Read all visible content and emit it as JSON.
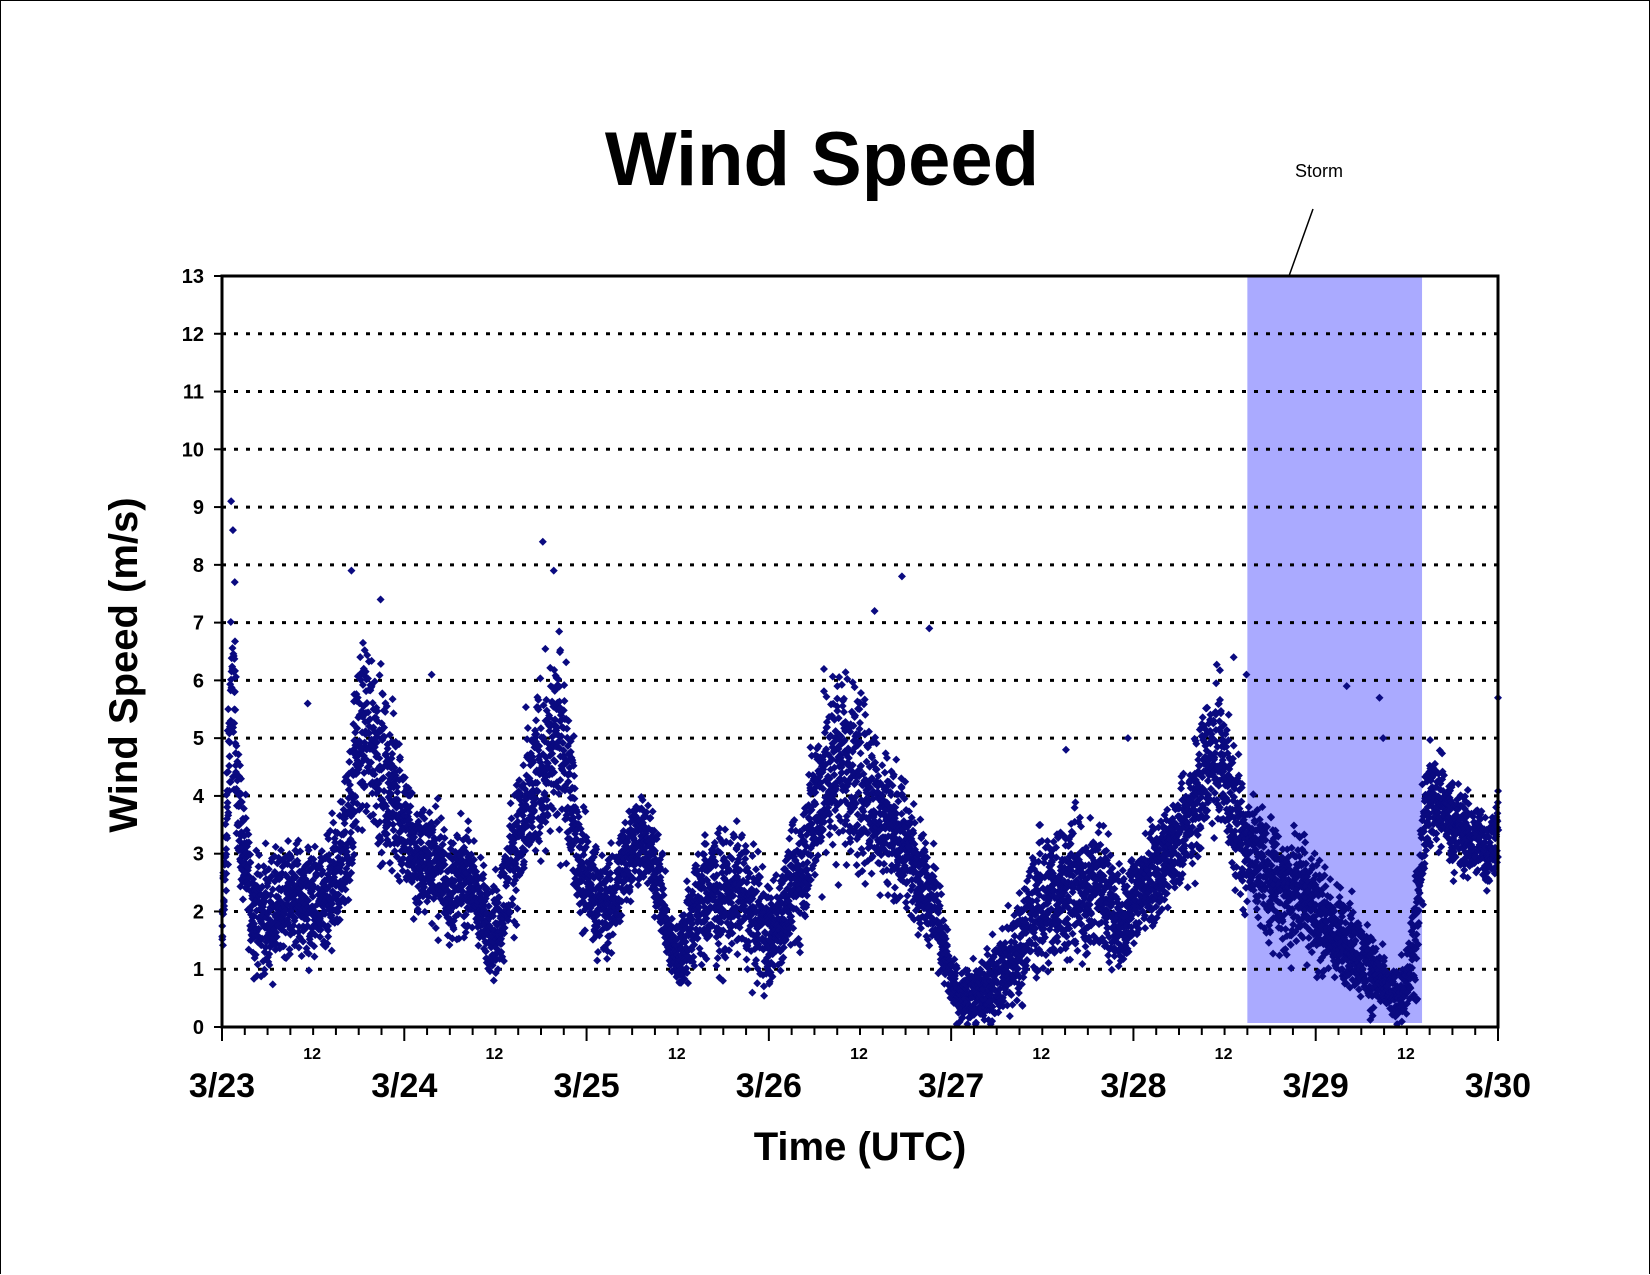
{
  "chart_data": {
    "type": "scatter",
    "title": "Wind Speed",
    "xlabel": "Time (UTC)",
    "ylabel": "Wind Speed (m/s)",
    "ylim": [
      0,
      13
    ],
    "yticks": [
      0,
      1,
      2,
      3,
      4,
      5,
      6,
      7,
      8,
      9,
      10,
      11,
      12,
      13
    ],
    "xlim": [
      "3/23 00:00",
      "3/30 00:00"
    ],
    "day_labels": [
      "3/23",
      "3/24",
      "3/25",
      "3/26",
      "3/27",
      "3/28",
      "3/29",
      "3/30"
    ],
    "hour_label": "12",
    "grid": "horizontal dotted",
    "marker": "diamond",
    "marker_color": "#0a0a80",
    "highlight": {
      "label": "Storm",
      "start": "3/28 15:00",
      "end": "3/29 14:00",
      "color": "#aaaaff"
    },
    "series": [
      {
        "x_days": [
          0.0,
          0.02,
          0.04,
          0.06,
          0.08,
          0.1,
          0.12,
          0.14,
          0.17,
          0.2,
          0.25,
          0.3,
          0.35,
          0.4,
          0.45,
          0.5,
          0.55,
          0.6,
          0.65,
          0.7,
          0.75,
          0.8,
          0.85,
          0.9,
          0.95,
          1.0,
          1.05,
          1.1,
          1.15,
          1.2,
          1.25,
          1.3,
          1.35,
          1.4,
          1.45,
          1.5,
          1.55,
          1.6,
          1.65,
          1.7,
          1.75,
          1.8,
          1.85,
          1.9,
          1.95,
          2.0,
          2.05,
          2.1,
          2.15,
          2.2,
          2.25,
          2.3,
          2.35,
          2.4,
          2.45,
          2.5,
          2.55,
          2.6,
          2.65,
          2.7,
          2.75,
          2.8,
          2.85,
          2.9,
          2.95,
          3.0,
          3.05,
          3.1,
          3.15,
          3.2,
          3.25,
          3.3,
          3.35,
          3.4,
          3.45,
          3.5,
          3.55,
          3.6,
          3.65,
          3.7,
          3.75,
          3.8,
          3.85,
          3.9,
          3.95,
          4.0,
          4.05,
          4.1,
          4.15,
          4.2,
          4.25,
          4.3,
          4.35,
          4.4,
          4.45,
          4.5,
          4.55,
          4.6,
          4.65,
          4.7,
          4.75,
          4.8,
          4.85,
          4.9,
          4.95,
          5.0,
          5.05,
          5.1,
          5.15,
          5.2,
          5.25,
          5.3,
          5.35,
          5.4,
          5.45,
          5.5,
          5.55,
          5.6,
          5.65,
          5.7,
          5.75,
          5.8,
          5.85,
          5.9,
          5.95,
          6.0,
          6.05,
          6.1,
          6.15,
          6.2,
          6.25,
          6.3,
          6.35,
          6.4,
          6.45,
          6.5,
          6.55,
          6.6,
          6.65,
          6.7,
          6.75,
          6.8,
          6.85,
          6.9,
          6.95,
          7.0
        ],
        "y": [
          1.5,
          3.0,
          5.0,
          6.0,
          4.5,
          3.5,
          3.0,
          2.5,
          2.0,
          2.0,
          1.9,
          2.0,
          2.2,
          2.3,
          2.2,
          2.1,
          2.0,
          2.3,
          2.8,
          3.5,
          5.0,
          5.2,
          4.8,
          4.2,
          4.0,
          3.5,
          3.0,
          2.8,
          3.0,
          2.7,
          2.4,
          2.5,
          2.6,
          2.2,
          1.8,
          1.6,
          2.2,
          3.0,
          3.5,
          4.0,
          4.5,
          4.8,
          5.0,
          4.5,
          3.0,
          2.5,
          2.3,
          2.0,
          2.2,
          2.8,
          3.2,
          3.3,
          3.0,
          2.5,
          1.5,
          1.2,
          1.6,
          2.0,
          2.2,
          2.3,
          2.2,
          2.4,
          2.3,
          2.0,
          1.8,
          1.5,
          1.8,
          2.2,
          2.5,
          3.0,
          3.8,
          4.2,
          4.5,
          4.7,
          4.5,
          4.2,
          4.0,
          3.8,
          3.6,
          3.4,
          3.2,
          2.8,
          2.5,
          2.2,
          1.5,
          0.8,
          0.5,
          0.5,
          0.6,
          0.7,
          0.9,
          1.0,
          1.2,
          1.6,
          2.0,
          2.2,
          2.3,
          2.4,
          2.5,
          2.4,
          2.3,
          2.5,
          2.3,
          2.0,
          1.8,
          2.2,
          2.5,
          2.6,
          2.7,
          3.0,
          3.2,
          3.5,
          4.0,
          4.6,
          4.8,
          4.5,
          3.8,
          3.2,
          3.0,
          2.8,
          2.6,
          2.4,
          2.2,
          2.5,
          2.3,
          2.0,
          1.8,
          1.6,
          1.5,
          1.4,
          1.2,
          1.0,
          0.8,
          0.6,
          0.5,
          0.8,
          1.5,
          3.8,
          4.0,
          3.8,
          3.5,
          3.4,
          3.2,
          3.3,
          3.0,
          3.5
        ],
        "spread": [
          0.6,
          1.0,
          1.5,
          1.5,
          1.2,
          1.0,
          0.9,
          0.9,
          0.8,
          0.9,
          0.9,
          0.9,
          0.9,
          0.9,
          0.9,
          0.9,
          0.9,
          1.0,
          1.0,
          1.2,
          1.4,
          1.5,
          1.4,
          1.3,
          1.2,
          1.1,
          1.0,
          0.9,
          0.9,
          0.9,
          0.8,
          0.8,
          0.8,
          0.8,
          0.7,
          0.8,
          0.9,
          1.0,
          1.2,
          1.3,
          1.4,
          1.5,
          1.5,
          1.3,
          1.0,
          0.9,
          0.8,
          0.8,
          0.8,
          0.8,
          0.8,
          0.7,
          0.7,
          0.7,
          0.5,
          0.5,
          0.8,
          0.9,
          1.0,
          1.0,
          1.0,
          1.0,
          1.0,
          0.9,
          0.9,
          0.8,
          0.8,
          0.9,
          1.0,
          1.1,
          1.3,
          1.4,
          1.5,
          1.5,
          1.5,
          1.4,
          1.3,
          1.2,
          1.1,
          1.0,
          0.9,
          0.8,
          0.8,
          0.8,
          0.6,
          0.4,
          0.4,
          0.4,
          0.5,
          0.6,
          0.6,
          0.7,
          0.8,
          0.9,
          1.0,
          1.1,
          1.1,
          1.1,
          1.1,
          1.1,
          1.0,
          1.0,
          1.0,
          0.9,
          0.8,
          0.8,
          0.7,
          0.7,
          0.7,
          0.7,
          0.8,
          0.9,
          1.0,
          1.1,
          1.1,
          1.1,
          1.0,
          1.0,
          1.0,
          1.0,
          1.0,
          0.9,
          0.9,
          1.0,
          0.9,
          0.9,
          0.8,
          0.8,
          0.7,
          0.7,
          0.6,
          0.6,
          0.5,
          0.4,
          0.4,
          0.6,
          1.0,
          0.8,
          0.8,
          0.7,
          0.7,
          0.7,
          0.6,
          0.6,
          0.6,
          0.6
        ]
      }
    ],
    "outliers": [
      {
        "x_days": 0.05,
        "y": 9.1
      },
      {
        "x_days": 0.06,
        "y": 8.6
      },
      {
        "x_days": 0.07,
        "y": 7.7
      },
      {
        "x_days": 0.71,
        "y": 7.9
      },
      {
        "x_days": 0.87,
        "y": 7.4
      },
      {
        "x_days": 1.76,
        "y": 8.4
      },
      {
        "x_days": 1.82,
        "y": 7.9
      },
      {
        "x_days": 3.58,
        "y": 7.2
      },
      {
        "x_days": 3.73,
        "y": 7.8
      },
      {
        "x_days": 3.88,
        "y": 6.9
      },
      {
        "x_days": 0.47,
        "y": 5.6
      },
      {
        "x_days": 1.15,
        "y": 6.1
      },
      {
        "x_days": 5.55,
        "y": 6.4
      },
      {
        "x_days": 5.62,
        "y": 6.1
      },
      {
        "x_days": 6.17,
        "y": 5.9
      },
      {
        "x_days": 6.35,
        "y": 5.7
      },
      {
        "x_days": 6.37,
        "y": 5.0
      },
      {
        "x_days": 7.0,
        "y": 5.7
      },
      {
        "x_days": 4.97,
        "y": 5.0
      },
      {
        "x_days": 4.63,
        "y": 4.8
      }
    ]
  }
}
